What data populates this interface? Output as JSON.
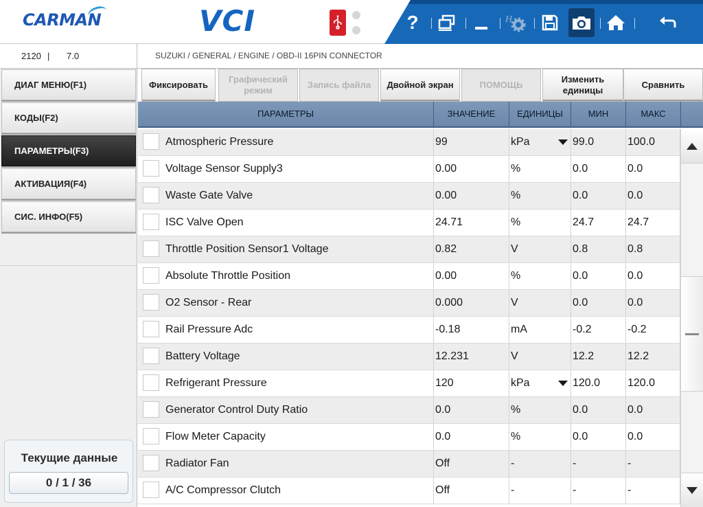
{
  "header": {
    "brand": "CARMAN",
    "product": "VCI",
    "toolbar": [
      {
        "name": "help-icon",
        "label": "?"
      },
      {
        "name": "window-switch-icon"
      },
      {
        "name": "minimize-icon"
      },
      {
        "name": "settings-icon",
        "disabled": true
      },
      {
        "name": "save-icon"
      },
      {
        "name": "camera-icon",
        "selected": true
      },
      {
        "name": "home-icon"
      },
      {
        "name": "back-icon"
      }
    ],
    "colors": {
      "brand_blue": "#1d58b4",
      "toolbar_blue": "#1769b8",
      "usb_red": "#d4202a"
    }
  },
  "infobar": {
    "id": "2120",
    "separator": "|",
    "version": "7.0",
    "breadcrumb": "SUZUKI / GENERAL / ENGINE / OBD-II 16PIN CONNECTOR"
  },
  "sidebar": {
    "items": [
      {
        "label": "ДИАГ МЕНЮ(F1)",
        "active": false
      },
      {
        "label": "КОДЫ(F2)",
        "active": false
      },
      {
        "label": "ПАРАМЕТРЫ(F3)",
        "active": true
      },
      {
        "label": "АКТИВАЦИЯ(F4)",
        "active": false
      },
      {
        "label": "СИС. ИНФО(F5)",
        "active": false
      }
    ],
    "status": {
      "title": "Текущие данные",
      "counter": "0 / 1 / 36"
    }
  },
  "function_buttons": [
    {
      "label": "Фиксировать",
      "disabled": false
    },
    {
      "label": "Графический режим",
      "disabled": true
    },
    {
      "label": "Запись файла",
      "disabled": true
    },
    {
      "label": "Двойной экран",
      "disabled": false
    },
    {
      "label": "ПОМОЩЬ",
      "disabled": true
    },
    {
      "label": "Изменить единицы",
      "disabled": false
    },
    {
      "label": "Сравнить",
      "disabled": false
    }
  ],
  "table": {
    "headers": {
      "param": "ПАРАМЕТРЫ",
      "value": "ЗНАЧЕНИЕ",
      "unit": "ЕДИНИЦЫ",
      "min": "МИН",
      "max": "МАКС"
    },
    "rows": [
      {
        "param": "Atmospheric Pressure",
        "value": "99",
        "unit": "kPa",
        "min": "99.0",
        "max": "100.0",
        "dropdown": true
      },
      {
        "param": "Voltage Sensor Supply3",
        "value": "0.00",
        "unit": "%",
        "min": "0.0",
        "max": "0.0"
      },
      {
        "param": "Waste Gate Valve",
        "value": "0.00",
        "unit": "%",
        "min": "0.0",
        "max": "0.0"
      },
      {
        "param": "ISC Valve Open",
        "value": "24.71",
        "unit": "%",
        "min": "24.7",
        "max": "24.7"
      },
      {
        "param": "Throttle Position Sensor1 Voltage",
        "value": "0.82",
        "unit": "V",
        "min": "0.8",
        "max": "0.8"
      },
      {
        "param": "Absolute Throttle Position",
        "value": "0.00",
        "unit": "%",
        "min": "0.0",
        "max": "0.0"
      },
      {
        "param": "O2 Sensor - Rear",
        "value": "0.000",
        "unit": "V",
        "min": "0.0",
        "max": "0.0"
      },
      {
        "param": "Rail Pressure Adc",
        "value": "-0.18",
        "unit": "mA",
        "min": "-0.2",
        "max": "-0.2"
      },
      {
        "param": "Battery Voltage",
        "value": "12.231",
        "unit": "V",
        "min": "12.2",
        "max": "12.2"
      },
      {
        "param": "Refrigerant Pressure",
        "value": "120",
        "unit": "kPa",
        "min": "120.0",
        "max": "120.0",
        "dropdown": true
      },
      {
        "param": "Generator Control Duty Ratio",
        "value": "0.0",
        "unit": "%",
        "min": "0.0",
        "max": "0.0"
      },
      {
        "param": "Flow Meter Capacity",
        "value": "0.0",
        "unit": "%",
        "min": "0.0",
        "max": "0.0"
      },
      {
        "param": "Radiator Fan",
        "value": "Off",
        "unit": "-",
        "min": "-",
        "max": "-"
      },
      {
        "param": "A/C Compressor Clutch",
        "value": "Off",
        "unit": "-",
        "min": "-",
        "max": "-"
      }
    ]
  },
  "scrollbar": {
    "position_fraction": 0.35
  }
}
